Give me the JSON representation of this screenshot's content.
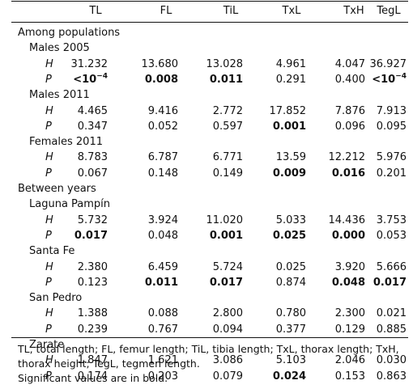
{
  "columns": [
    "TL",
    "FL",
    "TiL",
    "TxL",
    "TxH",
    "TegL"
  ],
  "rows": [
    {
      "type": "section",
      "label": "Among populations"
    },
    {
      "type": "group",
      "label": "Males 2005"
    },
    {
      "type": "stat",
      "label": "H",
      "values": [
        "31.232",
        "13.680",
        "13.028",
        "4.961",
        "4.047",
        "36.927"
      ],
      "bold": [
        false,
        false,
        false,
        false,
        false,
        false
      ]
    },
    {
      "type": "stat",
      "label": "P",
      "values": [
        "<10",
        "0.008",
        "0.011",
        "0.291",
        "0.400",
        "<10"
      ],
      "sup": [
        "−4",
        "",
        "",
        "",
        "",
        "−4"
      ],
      "bold": [
        true,
        true,
        true,
        false,
        false,
        true
      ]
    },
    {
      "type": "group",
      "label": "Males 2011"
    },
    {
      "type": "stat",
      "label": "H",
      "values": [
        "4.465",
        "9.416",
        "2.772",
        "17.852",
        "7.876",
        "7.913"
      ],
      "bold": [
        false,
        false,
        false,
        false,
        false,
        false
      ]
    },
    {
      "type": "stat",
      "label": "P",
      "values": [
        "0.347",
        "0.052",
        "0.597",
        "0.001",
        "0.096",
        "0.095"
      ],
      "bold": [
        false,
        false,
        false,
        true,
        false,
        false
      ]
    },
    {
      "type": "group",
      "label": "Females 2011"
    },
    {
      "type": "stat",
      "label": "H",
      "values": [
        "8.783",
        "6.787",
        "6.771",
        "13.59",
        "12.212",
        "5.976"
      ],
      "bold": [
        false,
        false,
        false,
        false,
        false,
        false
      ]
    },
    {
      "type": "stat",
      "label": "P",
      "values": [
        "0.067",
        "0.148",
        "0.149",
        "0.009",
        "0.016",
        "0.201"
      ],
      "bold": [
        false,
        false,
        false,
        true,
        true,
        false
      ]
    },
    {
      "type": "section",
      "label": "Between years"
    },
    {
      "type": "group",
      "label": "Laguna Pampín"
    },
    {
      "type": "stat",
      "label": "H",
      "values": [
        "5.732",
        "3.924",
        "11.020",
        "5.033",
        "14.436",
        "3.753"
      ],
      "bold": [
        false,
        false,
        false,
        false,
        false,
        false
      ]
    },
    {
      "type": "stat",
      "label": "P",
      "values": [
        "0.017",
        "0.048",
        "0.001",
        "0.025",
        "0.000",
        "0.053"
      ],
      "bold": [
        true,
        false,
        true,
        true,
        true,
        false
      ]
    },
    {
      "type": "group",
      "label": "Santa Fe"
    },
    {
      "type": "stat",
      "label": "H",
      "values": [
        "2.380",
        "6.459",
        "5.724",
        "0.025",
        "3.920",
        "5.666"
      ],
      "bold": [
        false,
        false,
        false,
        false,
        false,
        false
      ]
    },
    {
      "type": "stat",
      "label": "P",
      "values": [
        "0.123",
        "0.011",
        "0.017",
        "0.874",
        "0.048",
        "0.017"
      ],
      "bold": [
        false,
        true,
        true,
        false,
        true,
        true
      ]
    },
    {
      "type": "group",
      "label": "San Pedro"
    },
    {
      "type": "stat",
      "label": "H",
      "values": [
        "1.388",
        "0.088",
        "2.800",
        "0.780",
        "2.300",
        "0.021"
      ],
      "bold": [
        false,
        false,
        false,
        false,
        false,
        false
      ]
    },
    {
      "type": "stat",
      "label": "P",
      "values": [
        "0.239",
        "0.767",
        "0.094",
        "0.377",
        "0.129",
        "0.885"
      ],
      "bold": [
        false,
        false,
        false,
        false,
        false,
        false
      ]
    },
    {
      "type": "group",
      "label": "Zarate"
    },
    {
      "type": "stat",
      "label": "H",
      "values": [
        "1.847",
        "1.621",
        "3.086",
        "5.103",
        "2.046",
        "0.030"
      ],
      "bold": [
        false,
        false,
        false,
        false,
        false,
        false
      ]
    },
    {
      "type": "stat",
      "label": "P",
      "values": [
        "0.174",
        "0.203",
        "0.079",
        "0.024",
        "0.153",
        "0.863"
      ],
      "bold": [
        false,
        false,
        false,
        true,
        false,
        false
      ]
    }
  ],
  "footnotes": {
    "abbreviations": "TL, total length; FL, femur length; TiL, tibia length; TxL, thorax length; TxH, thorax height; TegL, tegmen length.",
    "significance": "Significant values are in bold."
  }
}
